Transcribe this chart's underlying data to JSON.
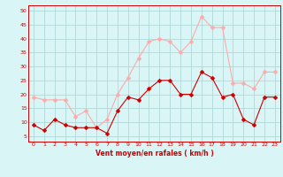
{
  "hours": [
    0,
    1,
    2,
    3,
    4,
    5,
    6,
    7,
    8,
    9,
    10,
    11,
    12,
    13,
    14,
    15,
    16,
    17,
    18,
    19,
    20,
    21,
    22,
    23
  ],
  "vent_moyen": [
    9,
    7,
    11,
    9,
    8,
    8,
    8,
    6,
    14,
    19,
    18,
    22,
    25,
    25,
    20,
    20,
    28,
    26,
    19,
    20,
    11,
    9,
    19,
    19
  ],
  "rafales": [
    19,
    18,
    18,
    18,
    12,
    14,
    8,
    11,
    20,
    26,
    33,
    39,
    40,
    39,
    35,
    39,
    48,
    44,
    44,
    24,
    24,
    22,
    28,
    28
  ],
  "line_color_moyen": "#cc0000",
  "line_color_rafales": "#ffaaaa",
  "bg_color": "#d9f5f5",
  "grid_color": "#b0d8d8",
  "xlabel": "Vent moyen/en rafales ( km/h )",
  "xlabel_color": "#cc0000",
  "yticks": [
    5,
    10,
    15,
    20,
    25,
    30,
    35,
    40,
    45,
    50
  ],
  "ylim": [
    3,
    52
  ],
  "xlim": [
    -0.5,
    23.5
  ]
}
